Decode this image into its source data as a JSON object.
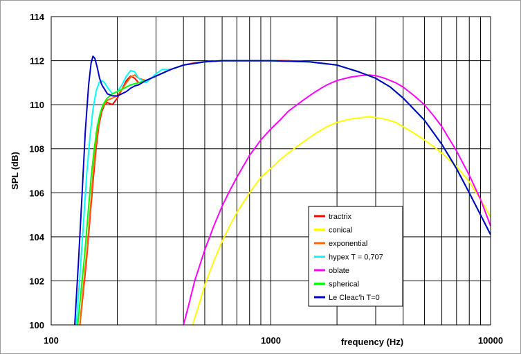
{
  "chart_data": {
    "type": "line",
    "xlabel": "frequency  (Hz)",
    "ylabel": "SPL  (dB)",
    "x_scale": "log",
    "xlim": [
      100,
      10000
    ],
    "ylim": [
      100,
      114
    ],
    "x_tick_labels": [
      "100",
      "1000",
      "10000"
    ],
    "y_ticks": [
      100,
      102,
      104,
      106,
      108,
      110,
      112,
      114
    ],
    "grid": true,
    "legend_position": "lower-right",
    "series": [
      {
        "name": "tractrix",
        "color": "#ff0000",
        "x": [
          135,
          140,
          145,
          150,
          155,
          160,
          165,
          170,
          175,
          180,
          190,
          200,
          210,
          220,
          230,
          240,
          250,
          270,
          300,
          350,
          400,
          450,
          500,
          600,
          700,
          800,
          900,
          1000,
          1200,
          1500,
          2000,
          2500,
          3000,
          3500,
          4000,
          5000,
          6000,
          7000,
          8000,
          9000,
          10000
        ],
        "y": [
          100,
          101.5,
          103,
          104.8,
          106.5,
          108,
          109.1,
          109.7,
          110,
          110.1,
          110,
          110.3,
          110.7,
          111.1,
          111.3,
          111.2,
          111.0,
          111.1,
          111.3,
          111.6,
          111.8,
          111.9,
          111.95,
          112,
          112,
          112,
          112,
          112,
          112,
          111.95,
          111.8,
          111.5,
          111.2,
          110.8,
          110.3,
          109.3,
          108.2,
          107.1,
          106,
          105,
          104.1
        ]
      },
      {
        "name": "conical",
        "color": "#ffff00",
        "x": [
          440,
          470,
          500,
          550,
          600,
          650,
          700,
          800,
          900,
          1000,
          1100,
          1200,
          1400,
          1600,
          1800,
          2000,
          2300,
          2600,
          2800,
          3000,
          3300,
          3700,
          4000,
          4500,
          5000,
          5500,
          6000,
          7000,
          8000,
          9000,
          10000
        ],
        "y": [
          100,
          100.9,
          101.8,
          102.9,
          103.8,
          104.5,
          105.1,
          106,
          106.7,
          107.1,
          107.5,
          107.8,
          108.3,
          108.7,
          109,
          109.2,
          109.35,
          109.42,
          109.45,
          109.42,
          109.35,
          109.2,
          109,
          108.7,
          108.4,
          108.1,
          107.8,
          107.2,
          106.5,
          105.7,
          104.9
        ]
      },
      {
        "name": "exponential",
        "color": "#ff6600",
        "x": [
          135,
          140,
          145,
          150,
          155,
          160,
          165,
          170,
          180,
          190,
          200,
          210,
          220,
          230,
          240,
          250,
          270,
          300,
          350,
          400,
          500,
          600,
          800,
          1000,
          1500,
          2000,
          2500,
          3000,
          3500,
          4000,
          5000,
          6000,
          7000,
          8000,
          9000,
          10000
        ],
        "y": [
          100,
          101.7,
          103.2,
          105,
          106.8,
          108.2,
          109.2,
          109.8,
          110.2,
          110.3,
          110.4,
          110.7,
          111,
          111.25,
          111.35,
          111.2,
          111.1,
          111.3,
          111.6,
          111.8,
          111.95,
          112,
          112,
          112,
          111.95,
          111.8,
          111.5,
          111.2,
          110.8,
          110.3,
          109.3,
          108.2,
          107.1,
          106,
          105,
          104.1
        ]
      },
      {
        "name": "hypex T = 0,707",
        "color": "#00ffff",
        "x": [
          130,
          135,
          140,
          145,
          150,
          155,
          160,
          165,
          170,
          175,
          180,
          190,
          200,
          210,
          220,
          230,
          240,
          250,
          270,
          300,
          320,
          350,
          400,
          500,
          600,
          800,
          1000,
          1500,
          2000,
          2500,
          3000,
          3500,
          4000,
          5000,
          6000,
          7000,
          8000,
          9000,
          10000
        ],
        "y": [
          100,
          102.2,
          104.5,
          106.8,
          108.5,
          109.8,
          110.6,
          111,
          111.1,
          111,
          110.8,
          110.5,
          110.6,
          110.9,
          111.3,
          111.55,
          111.5,
          111.2,
          111,
          111.4,
          111.6,
          111.6,
          111.8,
          111.95,
          112,
          112,
          112,
          111.95,
          111.8,
          111.5,
          111.2,
          110.8,
          110.3,
          109.3,
          108.2,
          107.1,
          106,
          105,
          104.1
        ]
      },
      {
        "name": "oblate",
        "color": "#ff00ff",
        "x": [
          400,
          420,
          450,
          500,
          550,
          600,
          650,
          700,
          800,
          900,
          1000,
          1100,
          1200,
          1400,
          1600,
          1800,
          2000,
          2300,
          2600,
          2800,
          3000,
          3300,
          3700,
          4000,
          4500,
          5000,
          5500,
          6000,
          7000,
          8000,
          9000,
          10000
        ],
        "y": [
          100,
          100.8,
          102,
          103.4,
          104.5,
          105.4,
          106.1,
          106.7,
          107.7,
          108.4,
          108.9,
          109.3,
          109.7,
          110.2,
          110.6,
          110.9,
          111.1,
          111.25,
          111.33,
          111.35,
          111.32,
          111.2,
          111,
          110.8,
          110.4,
          110,
          109.5,
          109,
          107.9,
          106.8,
          105.7,
          104.5
        ]
      },
      {
        "name": "spherical",
        "color": "#00ff00",
        "x": [
          132,
          137,
          142,
          147,
          152,
          157,
          162,
          167,
          172,
          180,
          190,
          200,
          210,
          220,
          230,
          240,
          250,
          270,
          300,
          350,
          400,
          500,
          600,
          800,
          1000,
          1500,
          2000,
          2500,
          3000,
          3500,
          4000,
          5000,
          6000,
          7000,
          8000,
          9000,
          10000
        ],
        "y": [
          100,
          101.6,
          103.2,
          105,
          106.7,
          108,
          109,
          109.6,
          110,
          110.3,
          110.5,
          110.6,
          110.7,
          110.8,
          110.9,
          110.95,
          111,
          111.1,
          111.3,
          111.6,
          111.8,
          111.95,
          112,
          112,
          112,
          111.95,
          111.8,
          111.5,
          111.2,
          110.8,
          110.3,
          109.3,
          108.2,
          107.1,
          106,
          105,
          104.1
        ]
      },
      {
        "name": "Le Cleac'h T=0",
        "color": "#0000cc",
        "x": [
          128,
          133,
          138,
          143,
          148,
          152,
          155,
          158,
          162,
          166,
          170,
          175,
          180,
          190,
          200,
          210,
          220,
          230,
          240,
          250,
          270,
          300,
          350,
          400,
          500,
          600,
          800,
          1000,
          1500,
          2000,
          2500,
          3000,
          3500,
          4000,
          5000,
          6000,
          7000,
          8000,
          9000,
          10000
        ],
        "y": [
          100,
          102.8,
          105.8,
          108.8,
          110.9,
          111.9,
          112.2,
          112.1,
          111.7,
          111.2,
          110.9,
          110.7,
          110.5,
          110.4,
          110.4,
          110.5,
          110.6,
          110.75,
          110.85,
          110.9,
          111.1,
          111.3,
          111.6,
          111.8,
          111.95,
          112,
          112,
          112,
          111.95,
          111.8,
          111.5,
          111.2,
          110.8,
          110.3,
          109.3,
          108.2,
          107.1,
          106,
          105,
          104.1
        ]
      }
    ]
  }
}
